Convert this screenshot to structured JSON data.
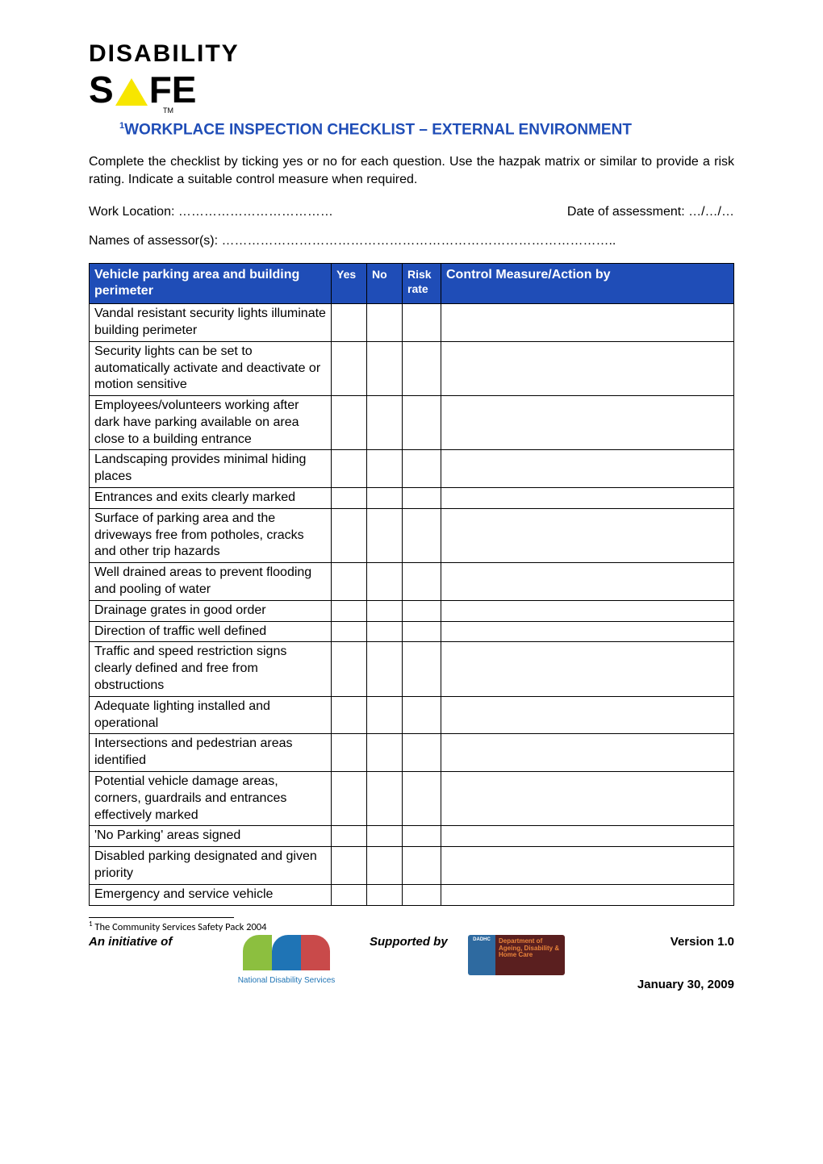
{
  "logo": {
    "line1": "DISABILITY",
    "line2a": "S",
    "line2b": "FE",
    "tm": "TM"
  },
  "title_prefix_super": "1",
  "title": "WORKPLACE INSPECTION CHECKLIST – EXTERNAL ENVIRONMENT",
  "intro": "Complete the checklist by ticking yes or no for each question.  Use the hazpak matrix or similar to provide a risk rating.  Indicate a suitable control measure when required.",
  "meta": {
    "work_location_label": "Work Location: ………………………………",
    "date_label": "Date of assessment: …/…/…",
    "assessors_label": "Names of assessor(s):  ……………………………………………………………………………….."
  },
  "table": {
    "headers": {
      "item": "Vehicle parking area and building perimeter",
      "yes": "Yes",
      "no": "No",
      "risk": "Risk rate",
      "control": "Control Measure/Action by"
    },
    "rows": [
      "Vandal resistant security lights illuminate building perimeter",
      "Security lights can be set to automatically activate and deactivate or motion sensitive",
      "Employees/volunteers working after dark have parking available on area close to a building entrance",
      "Landscaping provides minimal hiding places",
      "Entrances and exits clearly marked",
      "Surface of parking area and the driveways free from potholes, cracks and other trip hazards",
      "Well drained areas to prevent flooding and pooling of water",
      "Drainage grates in good order",
      "Direction of traffic well defined",
      "Traffic and speed restriction signs clearly defined and free from obstructions",
      "Adequate lighting installed and operational",
      "Intersections and pedestrian areas identified",
      "Potential vehicle damage areas, corners, guardrails and entrances effectively marked",
      "'No Parking' areas signed",
      "Disabled parking designated and given priority",
      "Emergency and service vehicle"
    ]
  },
  "footnote": {
    "marker": "1",
    "text": " The Community Services Safety Pack 2004"
  },
  "footer": {
    "initiative": "An initiative of",
    "nds_caption": "National Disability Services",
    "supported": "Supported by",
    "dadhc_left": "DADHC",
    "dadhc_right": "Department of Ageing, Disability & Home Care",
    "version": "Version 1.0",
    "date": "January 30, 2009"
  },
  "colors": {
    "header_blue": "#1f4db7",
    "logo_yellow": "#f7e600"
  }
}
